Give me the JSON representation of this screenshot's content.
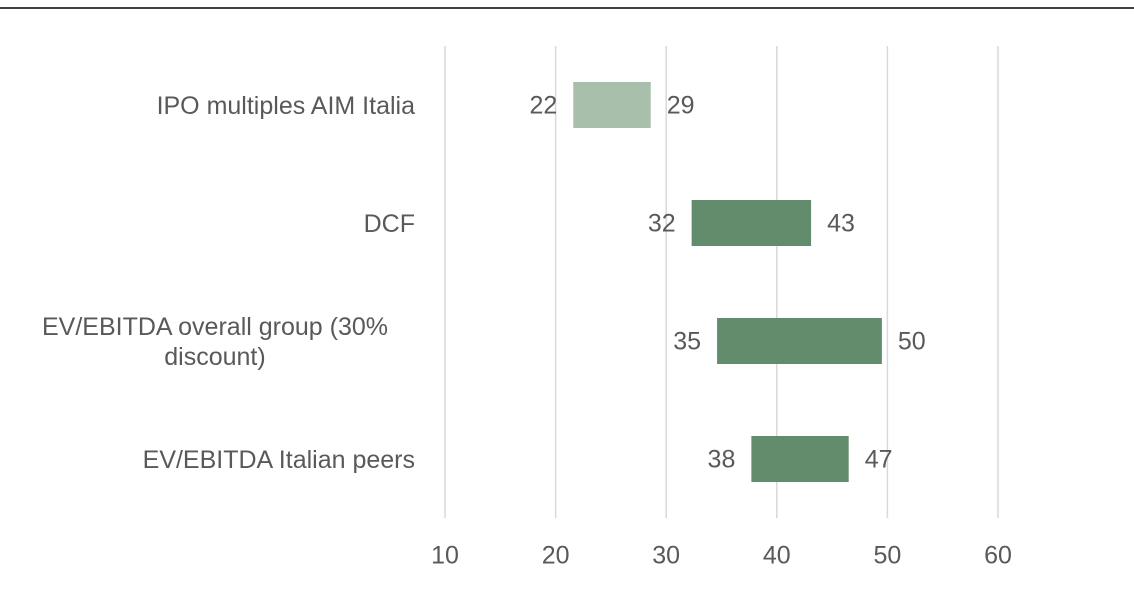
{
  "chart_data": {
    "type": "floating-bar",
    "categories": [
      "IPO multiples AIM Italia",
      "DCF",
      "EV/EBITDA overall group (30% discount)",
      "EV/EBITDA Italian peers"
    ],
    "low": [
      21.6,
      32.3,
      34.6,
      37.7
    ],
    "low_labels": [
      "22",
      "32",
      "35",
      "38"
    ],
    "high": [
      28.6,
      43.1,
      49.5,
      46.5
    ],
    "high_labels": [
      "29",
      "43",
      "50",
      "47"
    ],
    "colors": [
      "#a7bfab",
      "#638c6c",
      "#638c6c",
      "#638c6c"
    ],
    "xlim": [
      10,
      60
    ],
    "xticks": [
      10,
      20,
      30,
      40,
      50,
      60
    ],
    "grid": true
  }
}
